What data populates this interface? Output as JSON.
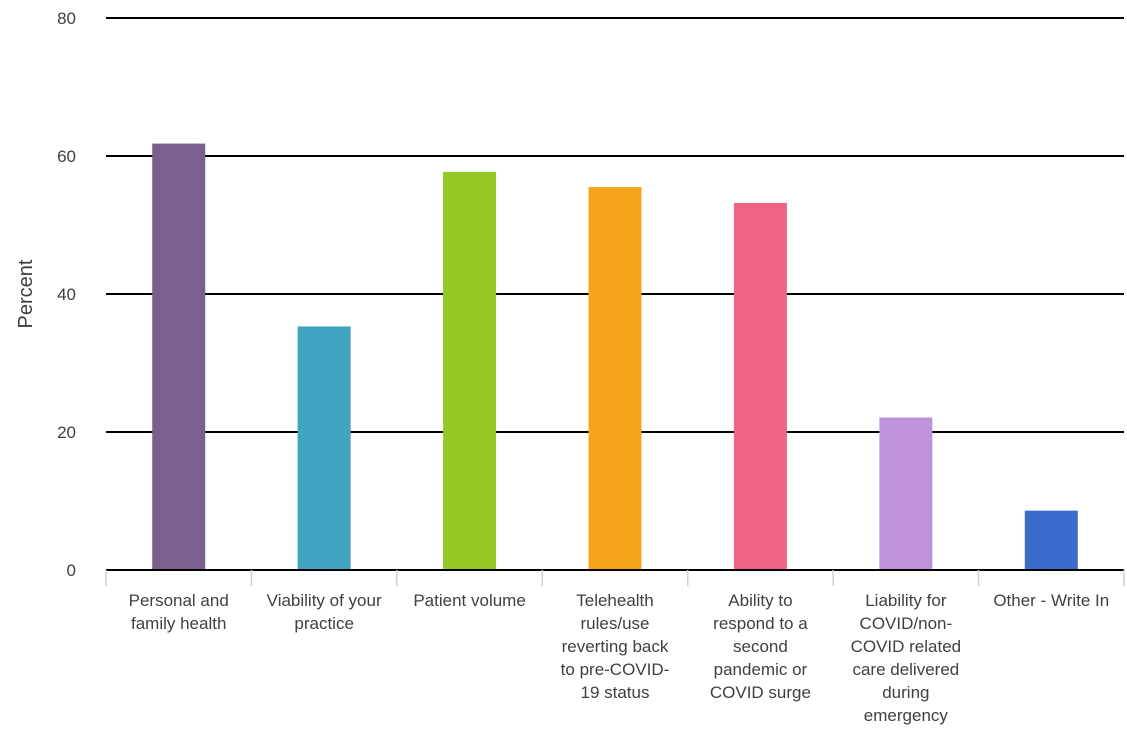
{
  "chart_data": {
    "type": "bar",
    "title": "",
    "xlabel": "",
    "ylabel": "Percent",
    "ylim": [
      0,
      80
    ],
    "yticks": [
      0,
      20,
      40,
      60,
      80
    ],
    "grid": true,
    "legend": "none",
    "categories": [
      "Personal and family health",
      "Viability of your practice",
      "Patient volume",
      "Telehealth rules/use reverting back to pre-COVID-19 status",
      "Ability to respond to a second pandemic or COVID surge",
      "Liability for COVID/non-COVID related care delivered during emergency",
      "Other - Write In"
    ],
    "category_lines": [
      [
        "Personal and",
        "family health"
      ],
      [
        "Viability of your",
        "practice"
      ],
      [
        "Patient volume"
      ],
      [
        "Telehealth",
        "rules/use",
        "reverting back",
        "to pre-COVID-",
        "19 status"
      ],
      [
        "Ability to",
        "respond to a",
        "second",
        "pandemic or",
        "COVID surge"
      ],
      [
        "Liability for",
        "COVID/non-",
        "COVID related",
        "care delivered",
        "during",
        "emergency"
      ],
      [
        "Other - Write In"
      ]
    ],
    "values": [
      61.8,
      35.3,
      57.7,
      55.5,
      53.2,
      22.1,
      8.6
    ],
    "colors": [
      "#7b5f8e",
      "#3fa3c2",
      "#95c926",
      "#f4a51c",
      "#ef6385",
      "#bf93da",
      "#3b6ccc"
    ]
  }
}
